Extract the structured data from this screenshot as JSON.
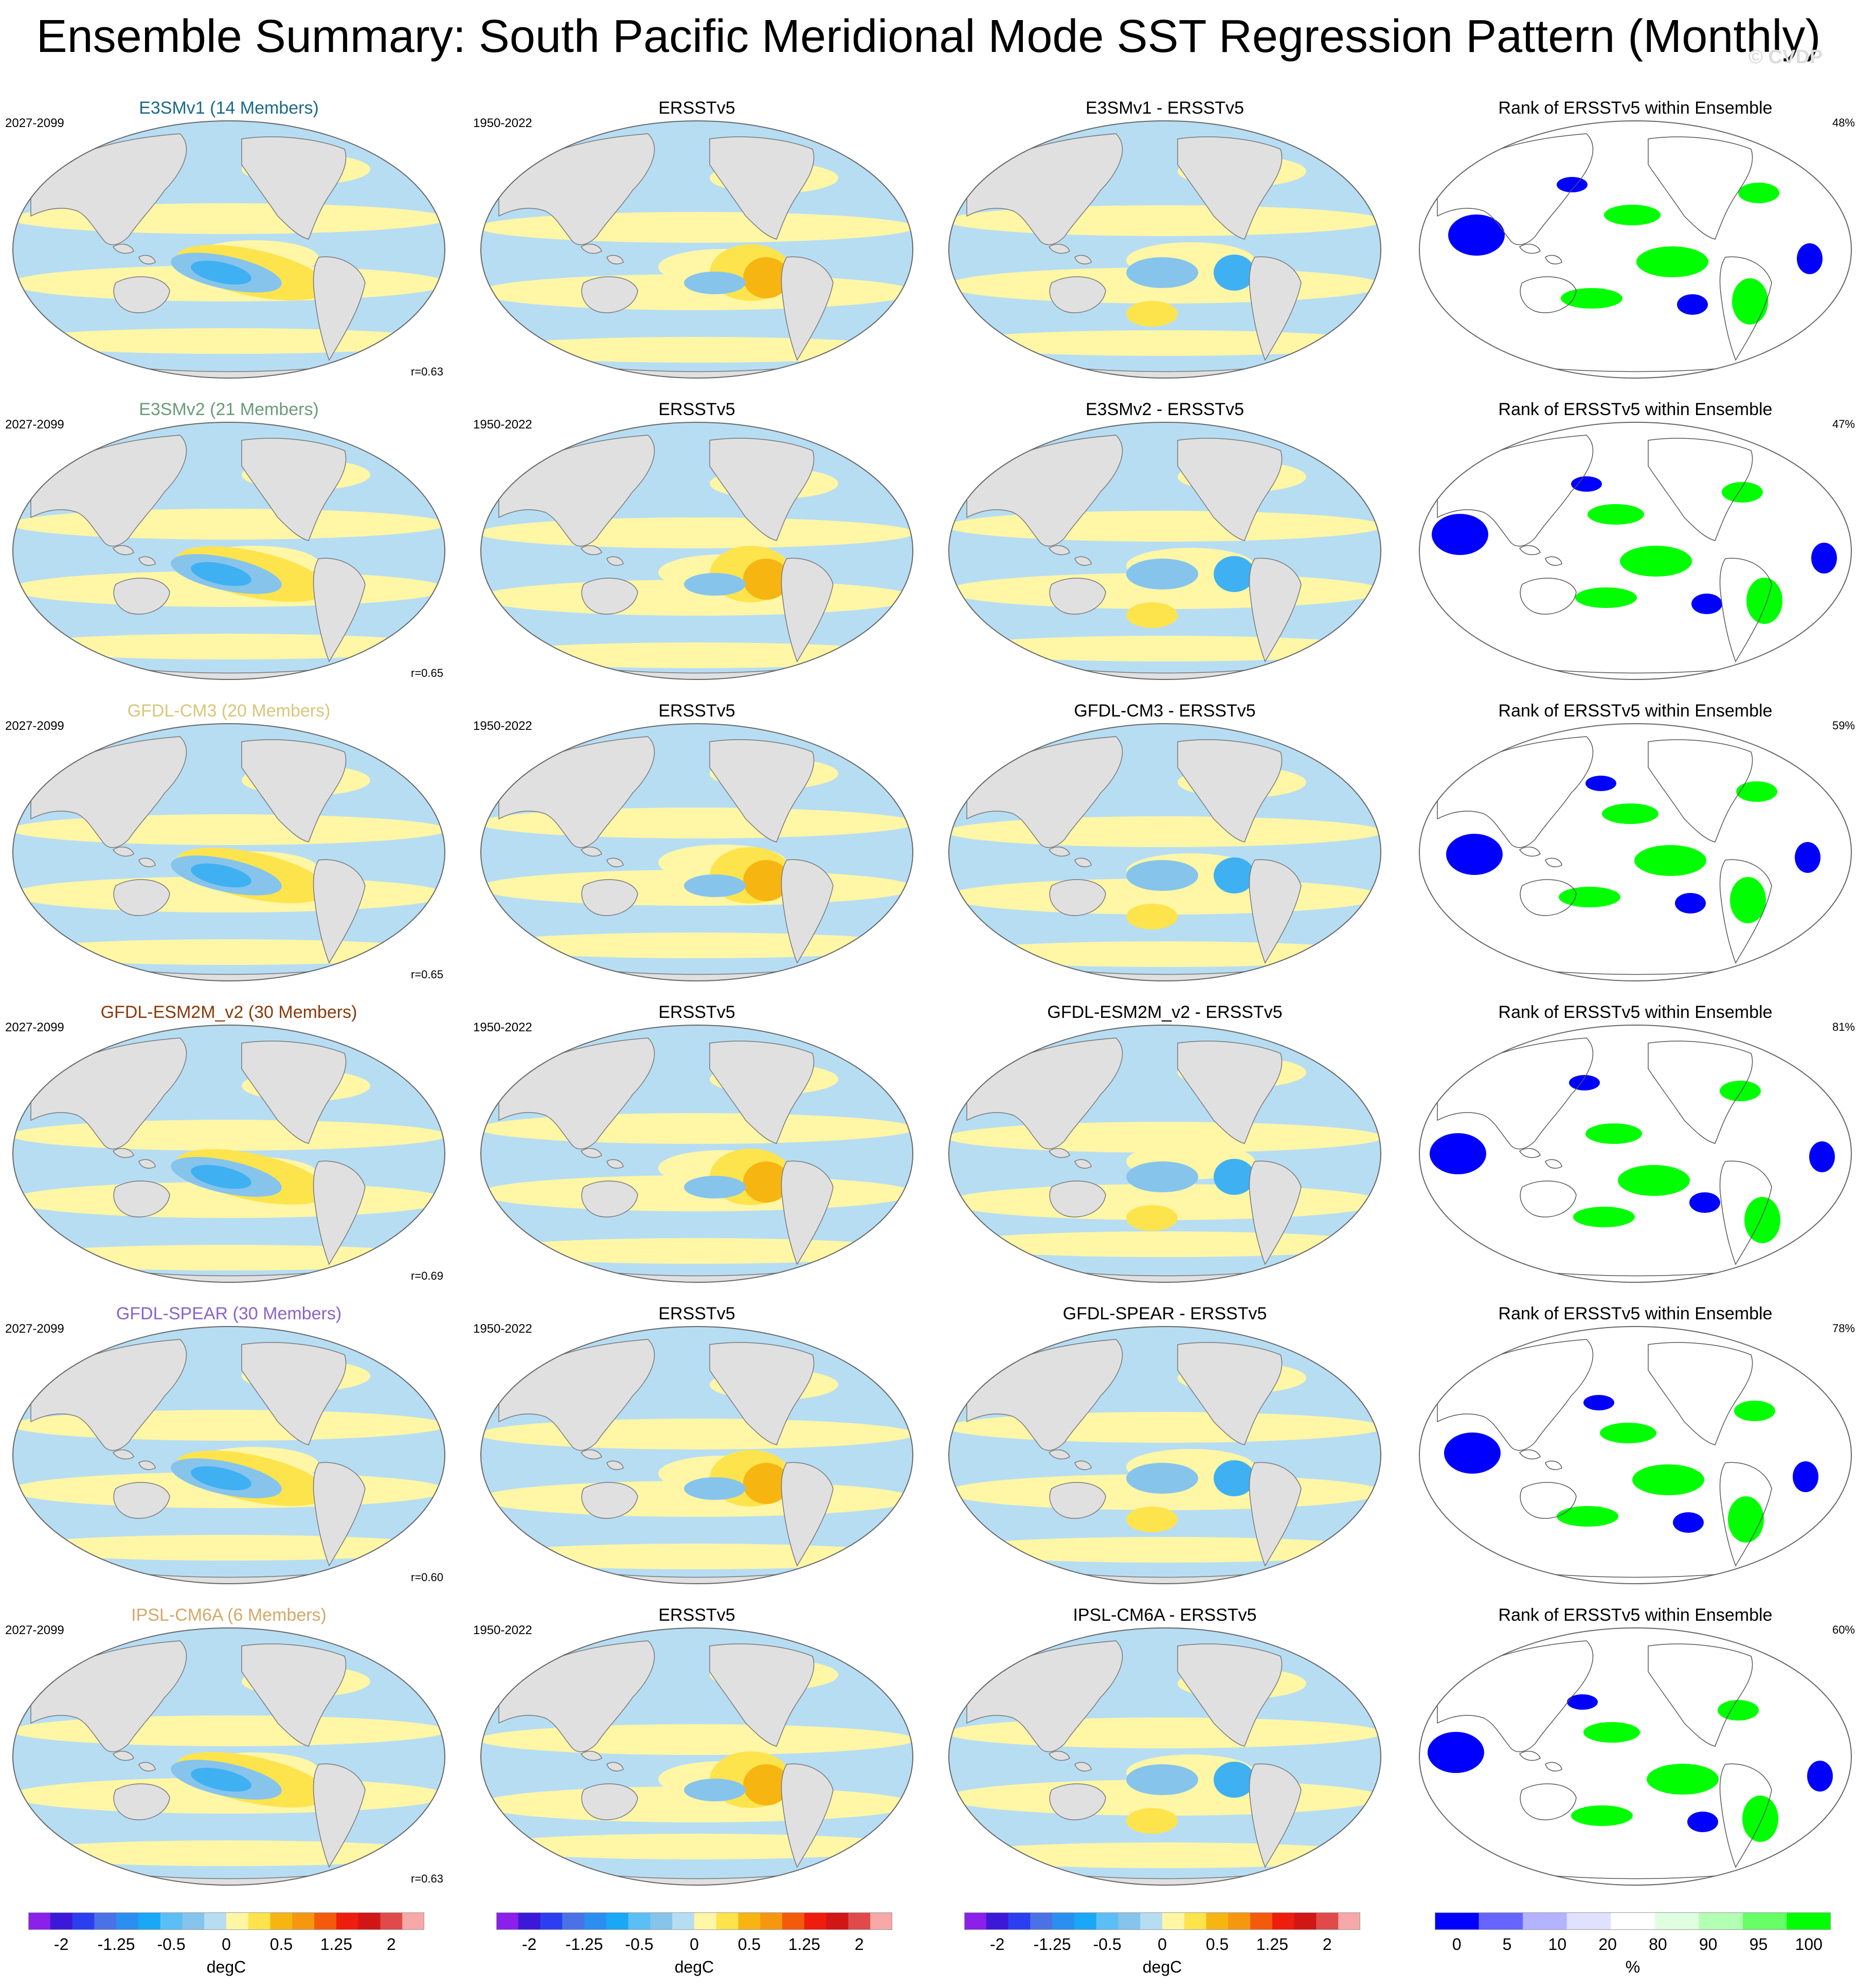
{
  "title": "Ensemble Summary: South Pacific Meridional Mode SST Regression Pattern (Monthly)",
  "watermark": "© CVDP",
  "icons": {
    "panel_map": "world-map-robinson",
    "rank_map": "rank-map"
  },
  "colors": {
    "land": "#e0e0e0",
    "light_blue": "#b7ddf3",
    "mid_blue": "#86c4ec",
    "blue": "#3fb1f2",
    "light_yellow": "#fff6a6",
    "yellow": "#fde44d",
    "orange": "#f7b512",
    "rank_blue": "#0000ff",
    "rank_green": "#00ff00",
    "rank_lightgreen": "#ccffcc",
    "rank_lightblue": "#ccccff"
  },
  "rows": [
    {
      "model": {
        "title": "E3SMv1 (14 Members)",
        "color": "#1a6a87",
        "period": "2027-2099",
        "r": "r=0.63"
      },
      "obs": {
        "title": "ERSSTv5",
        "period": "1950-2022"
      },
      "diff": {
        "title": "E3SMv1 - ERSSTv5"
      },
      "rank": {
        "title": "Rank of ERSSTv5 within Ensemble",
        "pct": "48%"
      }
    },
    {
      "model": {
        "title": "E3SMv2 (21 Members)",
        "color": "#6a9c78",
        "period": "2027-2099",
        "r": "r=0.65"
      },
      "obs": {
        "title": "ERSSTv5",
        "period": "1950-2022"
      },
      "diff": {
        "title": "E3SMv2 - ERSSTv5"
      },
      "rank": {
        "title": "Rank of ERSSTv5 within Ensemble",
        "pct": "47%"
      }
    },
    {
      "model": {
        "title": "GFDL-CM3 (20 Members)",
        "color": "#d8c67a",
        "period": "2027-2099",
        "r": "r=0.65"
      },
      "obs": {
        "title": "ERSSTv5",
        "period": "1950-2022"
      },
      "diff": {
        "title": "GFDL-CM3 - ERSSTv5"
      },
      "rank": {
        "title": "Rank of ERSSTv5 within Ensemble",
        "pct": "59%"
      }
    },
    {
      "model": {
        "title": "GFDL-ESM2M_v2 (30 Members)",
        "color": "#8a3a0a",
        "period": "2027-2099",
        "r": "r=0.69"
      },
      "obs": {
        "title": "ERSSTv5",
        "period": "1950-2022"
      },
      "diff": {
        "title": "GFDL-ESM2M_v2 - ERSSTv5"
      },
      "rank": {
        "title": "Rank of ERSSTv5 within Ensemble",
        "pct": "81%"
      }
    },
    {
      "model": {
        "title": "GFDL-SPEAR (30 Members)",
        "color": "#8a63c9",
        "period": "2027-2099",
        "r": "r=0.60"
      },
      "obs": {
        "title": "ERSSTv5",
        "period": "1950-2022"
      },
      "diff": {
        "title": "GFDL-SPEAR - ERSSTv5"
      },
      "rank": {
        "title": "Rank of ERSSTv5 within Ensemble",
        "pct": "78%"
      }
    },
    {
      "model": {
        "title": "IPSL-CM6A (6 Members)",
        "color": "#d4a86a",
        "period": "2027-2099",
        "r": "r=0.63"
      },
      "obs": {
        "title": "ERSSTv5",
        "period": "1950-2022"
      },
      "diff": {
        "title": "IPSL-CM6A - ERSSTv5"
      },
      "rank": {
        "title": "Rank of ERSSTv5 within Ensemble",
        "pct": "60%"
      }
    }
  ],
  "colorbar_degc": {
    "unit": "degC",
    "colors": [
      "#8b20ea",
      "#3c19d9",
      "#2c3ff0",
      "#4a72e6",
      "#2a8ff0",
      "#19a8f5",
      "#5bbef5",
      "#86c4ec",
      "#b7ddf3",
      "#fff6a6",
      "#fde44d",
      "#f7b512",
      "#f7970f",
      "#f45a0c",
      "#ef1d0d",
      "#d21515",
      "#e04a4a",
      "#f7a8a8"
    ],
    "ticks": [
      "-2",
      "-1.25",
      "-0.5",
      "0",
      "0.5",
      "1.25",
      "2"
    ]
  },
  "colorbar_rank": {
    "unit": "%",
    "colors": [
      "#0000ff",
      "#6666ff",
      "#b3b3ff",
      "#e0e0ff",
      "#ffffff",
      "#e0ffe0",
      "#b3ffb3",
      "#66ff66",
      "#00ff00"
    ],
    "ticks": [
      "0",
      "5",
      "10",
      "20",
      "80",
      "90",
      "95",
      "100"
    ]
  }
}
